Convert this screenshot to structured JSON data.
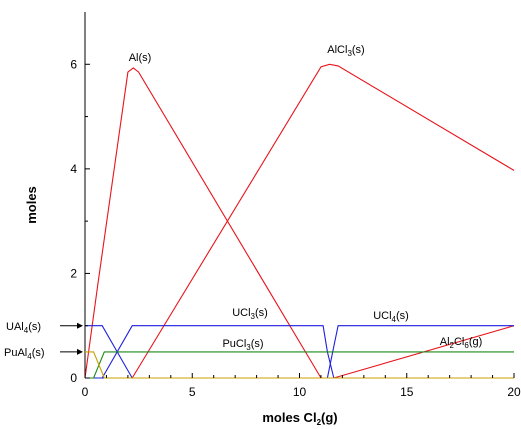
{
  "chart_data": {
    "type": "line",
    "xlabel": "moles Cl2(g)",
    "ylabel": "moles",
    "xlim": [
      0,
      20
    ],
    "ylim": [
      0,
      7
    ],
    "xticks": [
      0,
      5,
      10,
      15,
      20
    ],
    "yticks": [
      0,
      2,
      4,
      6
    ],
    "series": [
      {
        "name": "Al(s)",
        "color": "#e8141b",
        "x": [
          0,
          0.6,
          2.0,
          2.25,
          2.5,
          11.0,
          20
        ],
        "y": [
          0,
          1.8,
          5.85,
          5.93,
          5.85,
          0,
          0
        ]
      },
      {
        "name": "AlCl3(s)",
        "color": "#e8141b",
        "x": [
          0,
          2.2,
          11.0,
          11.4,
          11.8,
          20
        ],
        "y": [
          0,
          0,
          5.95,
          6.0,
          5.97,
          3.97
        ]
      },
      {
        "name": "Al2Cl6(g)",
        "color": "#e8141b",
        "x": [
          0,
          11.6,
          20
        ],
        "y": [
          0,
          0,
          1.0
        ]
      },
      {
        "name": "UAl4(s)",
        "color": "#1f1fdc",
        "x": [
          0,
          0.8,
          2.2,
          20
        ],
        "y": [
          1.0,
          1.0,
          0,
          0
        ]
      },
      {
        "name": "UCl3(s)",
        "color": "#1f1fdc",
        "x": [
          0,
          0.8,
          2.2,
          2.5,
          11.1,
          11.3,
          11.6,
          20
        ],
        "y": [
          0,
          0,
          1.0,
          1.0,
          1.0,
          0.5,
          0,
          0
        ]
      },
      {
        "name": "UCl4(s)",
        "color": "#1f1fdc",
        "x": [
          0,
          11.3,
          11.55,
          11.8,
          20
        ],
        "y": [
          0,
          0,
          0.5,
          1.0,
          1.0
        ]
      },
      {
        "name": "PuCl3(s)",
        "color": "#1a8a1a",
        "x": [
          0,
          0.4,
          0.9,
          20
        ],
        "y": [
          0,
          0,
          0.5,
          0.5
        ]
      },
      {
        "name": "PuAl4(s)",
        "color": "#c8a000",
        "x": [
          0,
          0.4,
          0.9,
          20
        ],
        "y": [
          0.5,
          0.5,
          0,
          0
        ]
      }
    ],
    "annotations": [
      {
        "id": "al",
        "main": "Al(s)",
        "sub": "",
        "tail": ""
      },
      {
        "id": "alcl3",
        "main": "AlCl",
        "sub": "3",
        "tail": "(s)"
      },
      {
        "id": "ucl3",
        "main": "UCl",
        "sub": "3",
        "tail": "(s)"
      },
      {
        "id": "ucl4",
        "main": "UCl",
        "sub": "4",
        "tail": "(s)"
      },
      {
        "id": "pucl3",
        "main": "PuCl",
        "sub": "3",
        "tail": "(s)"
      },
      {
        "id": "al2cl6",
        "main": "Al",
        "sub": "2",
        "mid": "Cl",
        "sub2": "6",
        "tail": "(g)"
      },
      {
        "id": "ual4",
        "main": "UAl",
        "sub": "4",
        "tail": "(s)"
      },
      {
        "id": "pual4",
        "main": "PuAl",
        "sub": "4",
        "tail": "(s)"
      }
    ]
  }
}
